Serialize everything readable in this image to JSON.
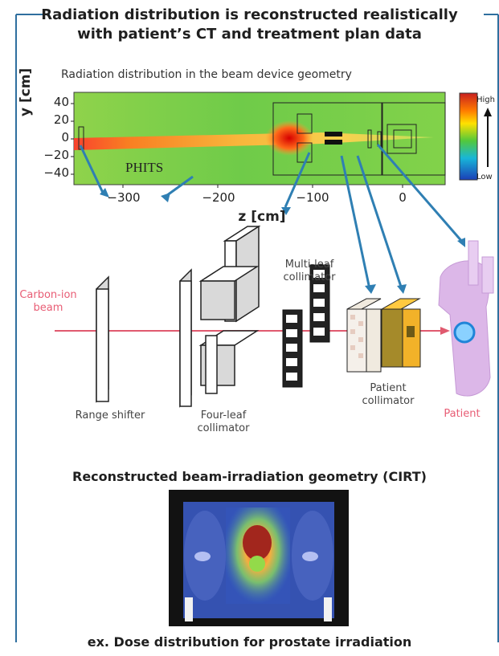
{
  "header": {
    "line1": "Radiation distribution is reconstructed realistically",
    "line2": "with patient’s CT and treatment plan data"
  },
  "map": {
    "title": "Radiation distribution in the beam device geometry",
    "y_axis_label": "y [cm]",
    "x_axis_label": "z [cm]",
    "y_ticks": [
      "40",
      "20",
      "0",
      "−20",
      "−40"
    ],
    "x_ticks": [
      "−300",
      "−200",
      "−100",
      "0"
    ],
    "colorbar_high": "High",
    "colorbar_low": "Low",
    "logo_text": "PHITS"
  },
  "components": {
    "carbon_ion_beam": "Carbon-ion\nbeam",
    "range_shifter": "Range shifter",
    "four_leaf": "Four-leaf\ncollimator",
    "multi_leaf": "Multi-leaf\ncollimator",
    "patient_collimator": "Patient\ncollimator",
    "patient": "Patient"
  },
  "geometry_title": "Reconstructed beam-irradiation geometry (CIRT)",
  "dose_caption": "ex. Dose distribution for prostate irradiation",
  "colors": {
    "frame": "#2f6f9f",
    "arrow": "#2f7fb3",
    "beam": "#e05a6f",
    "patient": "#d8b8e0"
  }
}
